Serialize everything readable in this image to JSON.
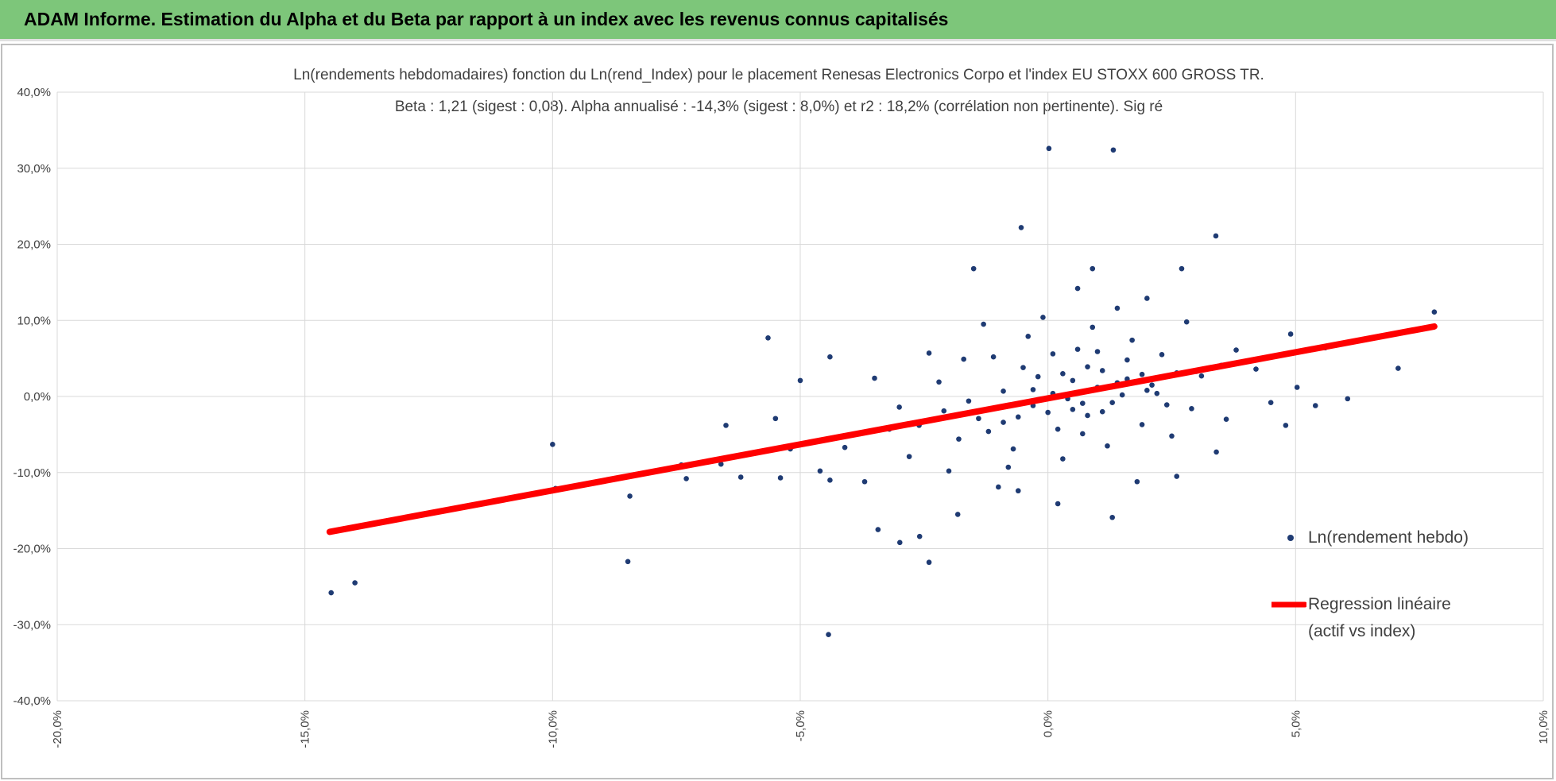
{
  "header": {
    "title": "ADAM Informe. Estimation du Alpha et du Beta par rapport à un index avec les revenus connus capitalisés"
  },
  "chart_data": {
    "type": "scatter",
    "title": "Ln(rendements hebdomadaires) fonction du Ln(rend_Index) pour le placement Renesas Electronics Corpo et l'index EU STOXX 600 GROSS TR.",
    "subtitle": "Beta : 1,21 (sigest : 0,08). Alpha annualisé : -14,3% (sigest : 8,0%) et r2 : 18,2% (corrélation non pertinente). Sig ré",
    "xlim": [
      -20,
      10
    ],
    "xticks": [
      {
        "value": -20,
        "label": "-20,0%"
      },
      {
        "value": -15,
        "label": "-15,0%"
      },
      {
        "value": -10,
        "label": "-10,0%"
      },
      {
        "value": -5,
        "label": "-5,0%"
      },
      {
        "value": 0,
        "label": "0,0%"
      },
      {
        "value": 5,
        "label": "5,0%"
      },
      {
        "value": 10,
        "label": "10,0%"
      }
    ],
    "ylim": [
      -40,
      40
    ],
    "yticks": [
      {
        "value": -40,
        "label": "-40,0%"
      },
      {
        "value": -30,
        "label": "-30,0%"
      },
      {
        "value": -20,
        "label": "-20,0%"
      },
      {
        "value": -10,
        "label": "-10,0%"
      },
      {
        "value": 0,
        "label": "0,0%"
      },
      {
        "value": 10,
        "label": "10,0%"
      },
      {
        "value": 20,
        "label": "20,0%"
      },
      {
        "value": 30,
        "label": "30,0%"
      },
      {
        "value": 40,
        "label": "40,0%"
      }
    ],
    "grid": true,
    "legend": "right",
    "series": [
      {
        "name": "Ln(rendement hebdo)",
        "type": "scatter",
        "color": "#1f3b73",
        "x": [
          -4.43,
          -14.47,
          -13.99,
          -10.0,
          -9.94,
          -8.44,
          -8.48,
          -5.65,
          0.02,
          1.32,
          -0.54,
          3.39,
          7.8,
          7.07,
          6.05,
          5.03,
          -2.4,
          -2.59,
          -2.99,
          -3.43,
          -1.82,
          -1.5,
          0.5,
          -0.3,
          1.1,
          0.8,
          -0.9,
          1.6,
          0.2,
          -1.4,
          2.1,
          0.6,
          -0.5,
          1.3,
          0.1,
          -1.8,
          2.6,
          1.9,
          -0.7,
          0.9,
          0.3,
          -2.2,
          1.7,
          2.9,
          -1.1,
          0.4,
          1.0,
          -0.2,
          0.7,
          1.5,
          -1.6,
          2.3,
          -2.6,
          3.1,
          0.0,
          1.2,
          -0.4,
          2.5,
          -3.0,
          3.5,
          -0.8,
          1.4,
          0.6,
          0.9,
          -0.1,
          2.8,
          -1.3,
          3.4,
          -2.0,
          4.2,
          4.5,
          -3.5,
          -3.8,
          2.0,
          1.8,
          -0.6,
          0.2,
          1.3,
          2.6,
          -1.0,
          -4.1,
          -4.6,
          -5.2,
          -5.5,
          -6.2,
          -6.6,
          -7.4,
          -3.2,
          -2.8,
          -1.7,
          -2.4,
          3.8,
          4.9,
          5.6,
          6.1,
          5.4,
          3.6,
          4.8,
          2.7,
          2.0,
          1.1,
          -4.4,
          -5.0,
          -5.4,
          -7.3,
          -6.5,
          -3.7,
          -4.4,
          0.8,
          1.4,
          -0.3,
          0.5,
          1.0,
          1.6,
          0.3,
          -0.9,
          2.2,
          -1.2,
          0.7,
          1.9,
          -0.6,
          0.1,
          2.4,
          -2.1,
          3.0
        ],
        "values": [
          -31.3,
          -25.8,
          -24.5,
          -6.3,
          -12.1,
          -13.1,
          -21.7,
          7.7,
          32.6,
          32.4,
          22.2,
          21.1,
          11.1,
          3.7,
          -0.3,
          1.2,
          -21.8,
          -18.4,
          -19.2,
          -17.5,
          -15.5,
          16.8,
          2.1,
          -1.2,
          3.4,
          -2.5,
          0.7,
          4.8,
          -4.3,
          -2.9,
          1.5,
          6.2,
          3.8,
          -0.8,
          0.4,
          -5.6,
          3.1,
          -3.7,
          -6.9,
          9.1,
          -8.2,
          1.9,
          7.4,
          -1.6,
          5.2,
          -0.3,
          1.2,
          2.6,
          -4.9,
          0.2,
          -0.6,
          5.5,
          -3.8,
          2.7,
          -2.1,
          -6.5,
          7.9,
          -5.2,
          -1.4,
          4.1,
          -9.3,
          11.6,
          14.2,
          16.8,
          10.4,
          9.8,
          9.5,
          -7.3,
          -9.8,
          3.6,
          -0.8,
          2.4,
          -4.9,
          12.9,
          -11.2,
          -12.4,
          -14.1,
          -15.9,
          -10.5,
          -11.9,
          -6.7,
          -9.8,
          -6.9,
          -2.9,
          -10.6,
          -8.9,
          -9.0,
          -4.3,
          -7.9,
          4.9,
          5.7,
          6.1,
          8.2,
          6.4,
          7.1,
          -1.2,
          -3.0,
          -3.8,
          16.8,
          0.8,
          -2.0,
          5.2,
          2.1,
          -10.7,
          -10.8,
          -3.8,
          -11.2,
          -11.0,
          3.9,
          1.8,
          0.9,
          -1.7,
          5.9,
          2.3,
          3.0,
          -3.4,
          0.4,
          -4.6,
          -0.9,
          2.9,
          -2.7,
          5.6,
          -1.1,
          -1.9,
          3.3
        ]
      },
      {
        "name": "Regression linéaire (actif vs index)",
        "type": "line",
        "color": "#ff0000",
        "x": [
          -14.5,
          7.8
        ],
        "values": [
          -17.8,
          9.2
        ]
      }
    ]
  }
}
